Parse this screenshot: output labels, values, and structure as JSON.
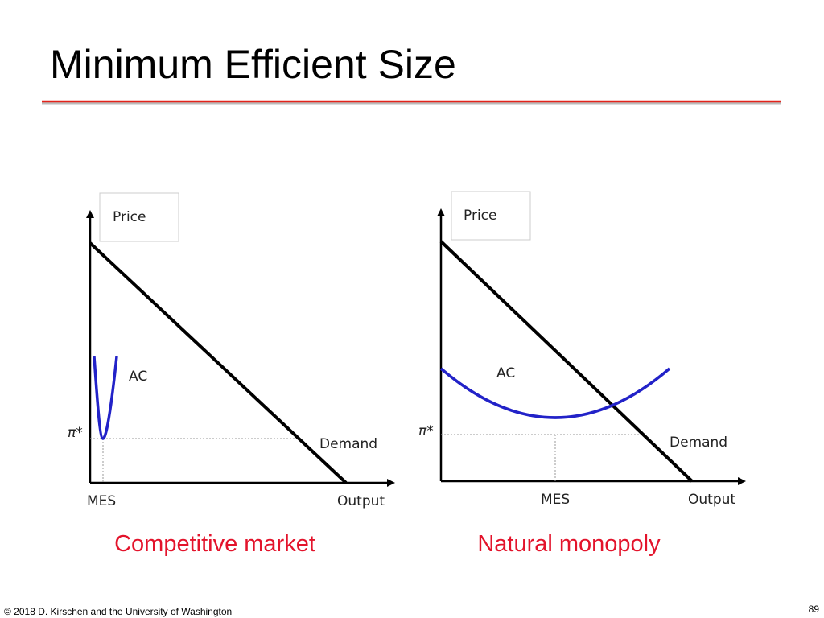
{
  "title": "Minimum Efficient Size",
  "diagrams": [
    {
      "y_label": "Price",
      "x_label": "Output",
      "curve_label": "AC",
      "demand_label": "Demand",
      "price_label": "π*",
      "quantity_label": "MES",
      "caption": "Competitive market"
    },
    {
      "y_label": "Price",
      "x_label": "Output",
      "curve_label": "AC",
      "demand_label": "Demand",
      "price_label": "π*",
      "quantity_label": "MES",
      "caption": "Natural monopoly"
    }
  ],
  "footer": {
    "copyright": "© 2018 D. Kirschen and the University of Washington",
    "page": "89"
  }
}
